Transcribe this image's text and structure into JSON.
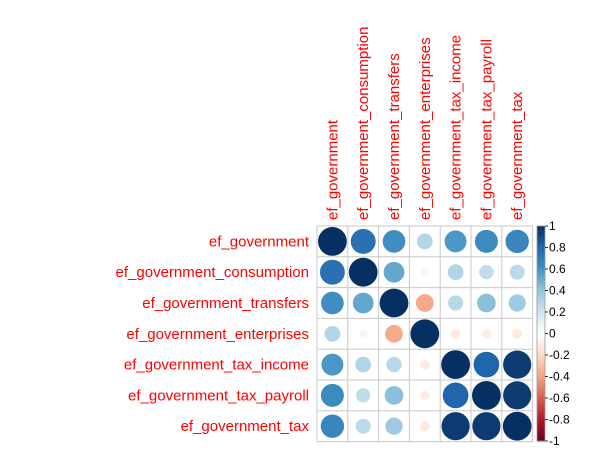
{
  "chart_data": {
    "type": "heatmap",
    "variables": [
      "ef_government",
      "ef_government_consumption",
      "ef_government_transfers",
      "ef_government_enterprises",
      "ef_government_tax_income",
      "ef_government_tax_payroll",
      "ef_government_tax"
    ],
    "matrix": [
      [
        1.0,
        0.75,
        0.62,
        0.3,
        0.58,
        0.64,
        0.66
      ],
      [
        0.75,
        1.0,
        0.52,
        -0.07,
        0.3,
        0.25,
        0.27
      ],
      [
        0.62,
        0.52,
        1.0,
        -0.38,
        0.28,
        0.42,
        0.36
      ],
      [
        0.3,
        -0.07,
        -0.38,
        1.0,
        -0.11,
        -0.1,
        -0.12
      ],
      [
        0.58,
        0.3,
        0.28,
        -0.11,
        1.0,
        0.8,
        0.96
      ],
      [
        0.64,
        0.25,
        0.42,
        -0.1,
        0.8,
        1.0,
        0.96
      ],
      [
        0.66,
        0.27,
        0.36,
        -0.12,
        0.96,
        0.96,
        1.0
      ]
    ],
    "colorbar": {
      "range": [
        -1,
        1
      ],
      "ticks": [
        "-1",
        "-0.8",
        "-0.6",
        "-0.4",
        "-0.2",
        "0",
        "0.2",
        "0.4",
        "0.6",
        "0.8",
        "1"
      ]
    },
    "colors": {
      "negative": "#67001f",
      "neutral": "#f7f7f7",
      "positive": "#053061",
      "label": "#ff0000"
    }
  }
}
